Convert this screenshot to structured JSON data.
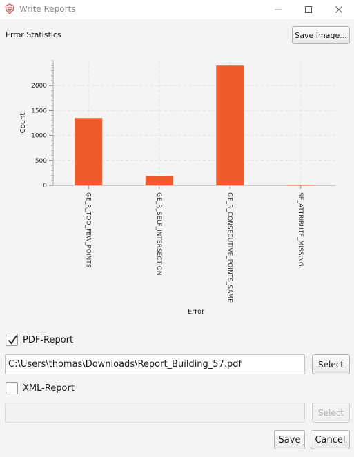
{
  "window": {
    "title": "Write Reports",
    "icon": "app-logo-icon"
  },
  "chart_section": {
    "label": "Error Statistics",
    "save_image_label": "Save Image..."
  },
  "chart_data": {
    "type": "bar",
    "categories": [
      "GE_R_TOO_FEW_POINTS",
      "GE_R_SELF_INTERSECTION",
      "GE_R_CONSECUTIVE_POINTS_SAME",
      "SE_ATTRIBUTE_MISSING"
    ],
    "values": [
      1350,
      190,
      2400,
      8
    ],
    "xlabel": "Error",
    "ylabel": "Count",
    "ylim": [
      0,
      2500
    ],
    "yticks": [
      "0",
      "500",
      "1000",
      "1500",
      "2000"
    ],
    "grid": true,
    "bar_color": "#f15a2b"
  },
  "pdf_report": {
    "label": "PDF-Report",
    "checked": true,
    "path_value": "C:\\Users\\thomas\\Downloads\\Report_Building_57.pdf",
    "select_label": "Select"
  },
  "xml_report": {
    "label": "XML-Report",
    "checked": false,
    "path_value": "",
    "select_label": "Select"
  },
  "footer": {
    "save_label": "Save",
    "cancel_label": "Cancel"
  }
}
